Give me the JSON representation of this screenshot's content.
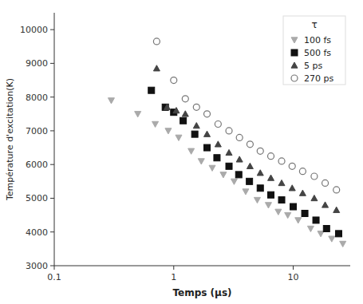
{
  "chart_data": {
    "type": "scatter",
    "xlabel": "Temps (μs)",
    "ylabel": "Température d'excitation(K)",
    "legend_title": "τ",
    "log": "x",
    "grid": false,
    "legend": "upper-right",
    "xlim": [
      0.1,
      30
    ],
    "xticks": [
      0.1,
      1,
      10
    ],
    "ylim": [
      3000,
      10500
    ],
    "yticks": [
      3000,
      4000,
      5000,
      6000,
      7000,
      8000,
      9000,
      10000
    ],
    "series": [
      {
        "name": "100 fs",
        "color": "#aaaaaa",
        "marker": "triangle-down",
        "x": [
          0.3,
          0.5,
          0.7,
          0.9,
          1.1,
          1.4,
          1.7,
          2.1,
          2.6,
          3.2,
          4.0,
          5.0,
          6.2,
          7.5,
          9.0,
          11.0,
          14.0,
          17.0,
          21.0,
          26.0
        ],
        "values": [
          7900,
          7500,
          7200,
          7000,
          6800,
          6400,
          6100,
          5900,
          5700,
          5500,
          5200,
          4950,
          4800,
          4600,
          4500,
          4350,
          4100,
          3950,
          3800,
          3650
        ]
      },
      {
        "name": "500 fs",
        "color": "#111111",
        "marker": "square",
        "x": [
          0.65,
          0.85,
          1.0,
          1.2,
          1.5,
          1.9,
          2.3,
          2.9,
          3.5,
          4.3,
          5.3,
          6.5,
          8.0,
          10.0,
          12.5,
          15.5,
          19.0,
          24.0
        ],
        "values": [
          8200,
          7700,
          7550,
          7300,
          6900,
          6500,
          6200,
          5950,
          5700,
          5500,
          5300,
          5100,
          4950,
          4750,
          4550,
          4350,
          4100,
          3950
        ]
      },
      {
        "name": "5 ps",
        "color": "#444444",
        "marker": "triangle-up",
        "x": [
          0.72,
          0.88,
          1.05,
          1.25,
          1.55,
          1.9,
          2.35,
          2.9,
          3.55,
          4.35,
          5.3,
          6.5,
          8.0,
          9.8,
          12.0,
          15.0,
          18.5,
          23.0
        ],
        "values": [
          8850,
          7700,
          7600,
          7500,
          7150,
          6900,
          6600,
          6350,
          6150,
          5950,
          5750,
          5600,
          5450,
          5300,
          5150,
          5000,
          4800,
          4650
        ]
      },
      {
        "name": "270 ps",
        "color": "#777777",
        "marker": "open-circle",
        "x": [
          0.72,
          1.0,
          1.25,
          1.55,
          1.9,
          2.35,
          2.9,
          3.55,
          4.35,
          5.3,
          6.5,
          8.0,
          9.8,
          12.0,
          15.0,
          18.5,
          23.0
        ],
        "values": [
          9650,
          8500,
          7950,
          7700,
          7500,
          7200,
          7000,
          6800,
          6600,
          6400,
          6250,
          6100,
          5950,
          5800,
          5650,
          5450,
          5250
        ]
      }
    ]
  }
}
